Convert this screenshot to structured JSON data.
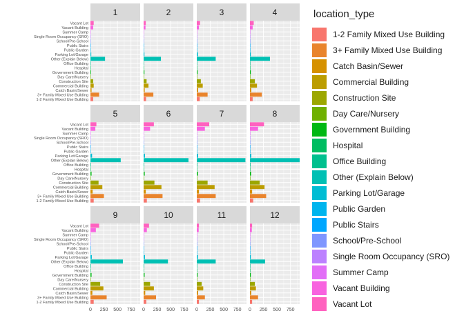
{
  "legend": {
    "title": "location_type",
    "items": [
      {
        "label": "1-2 Family Mixed Use Building",
        "color": "#F8766D"
      },
      {
        "label": "3+ Family Mixed Use Building",
        "color": "#E9842C"
      },
      {
        "label": "Catch Basin/Sewer",
        "color": "#D69100"
      },
      {
        "label": "Commercial Building",
        "color": "#BC9D00"
      },
      {
        "label": "Construction Site",
        "color": "#9CA700"
      },
      {
        "label": "Day Care/Nursery",
        "color": "#6FB000"
      },
      {
        "label": "Government Building",
        "color": "#00B813"
      },
      {
        "label": "Hospital",
        "color": "#00BD61"
      },
      {
        "label": "Office Building",
        "color": "#00C08E"
      },
      {
        "label": "Other (Explain Below)",
        "color": "#00C0B4"
      },
      {
        "label": "Parking Lot/Garage",
        "color": "#00BDD4"
      },
      {
        "label": "Public Garden",
        "color": "#00B5EE"
      },
      {
        "label": "Public Stairs",
        "color": "#00A7FF"
      },
      {
        "label": "School/Pre-School",
        "color": "#7F96FF"
      },
      {
        "label": "Single Room Occupancy (SRO)",
        "color": "#BC81FF"
      },
      {
        "label": "Summer Camp",
        "color": "#E26EF7"
      },
      {
        "label": "Vacant Building",
        "color": "#F863DF"
      },
      {
        "label": "Vacant Lot",
        "color": "#FF62BF"
      }
    ]
  },
  "chart_data": {
    "type": "bar",
    "orientation": "horizontal",
    "facet_variable": "month",
    "categories": [
      "1-2 Family Mixed Use Building",
      "3+ Family Mixed Use Building",
      "Catch Basin/Sewer",
      "Commercial Building",
      "Construction Site",
      "Day Care/Nursery",
      "Government Building",
      "Hospital",
      "Office Building",
      "Other (Explain Below)",
      "Parking Lot/Garage",
      "Public Garden",
      "Public Stairs",
      "School/Pre-School",
      "Single Room Occupancy (SRO)",
      "Summer Camp",
      "Vacant Building",
      "Vacant Lot"
    ],
    "xlim": [
      0,
      920
    ],
    "x_ticks": [
      0,
      250,
      500,
      750
    ],
    "x_tick_labels": [
      "0",
      "250",
      "500",
      "750"
    ],
    "grid": true,
    "legend_position": "right",
    "facets": [
      {
        "label": "1",
        "values": [
          50,
          160,
          20,
          60,
          50,
          5,
          12,
          2,
          8,
          270,
          15,
          5,
          2,
          3,
          3,
          1,
          50,
          60
        ]
      },
      {
        "label": "2",
        "values": [
          45,
          180,
          20,
          90,
          55,
          5,
          15,
          2,
          8,
          320,
          15,
          5,
          2,
          3,
          3,
          1,
          35,
          40
        ]
      },
      {
        "label": "3",
        "values": [
          55,
          200,
          25,
          110,
          75,
          5,
          15,
          2,
          8,
          350,
          20,
          5,
          2,
          3,
          3,
          1,
          40,
          60
        ]
      },
      {
        "label": "4",
        "values": [
          50,
          220,
          25,
          130,
          90,
          5,
          15,
          2,
          8,
          370,
          15,
          5,
          2,
          3,
          3,
          1,
          50,
          70
        ]
      },
      {
        "label": "5",
        "values": [
          60,
          250,
          40,
          220,
          150,
          8,
          20,
          3,
          10,
          560,
          30,
          8,
          3,
          3,
          3,
          2,
          90,
          110
        ]
      },
      {
        "label": "6",
        "values": [
          60,
          350,
          40,
          330,
          200,
          8,
          20,
          3,
          10,
          830,
          25,
          8,
          3,
          3,
          3,
          2,
          120,
          190
        ]
      },
      {
        "label": "7",
        "values": [
          60,
          350,
          40,
          330,
          200,
          8,
          20,
          3,
          10,
          900,
          25,
          8,
          3,
          3,
          3,
          2,
          150,
          230
        ]
      },
      {
        "label": "8",
        "values": [
          60,
          300,
          40,
          270,
          180,
          8,
          20,
          3,
          10,
          920,
          25,
          8,
          3,
          3,
          3,
          2,
          150,
          260
        ]
      },
      {
        "label": "9",
        "values": [
          60,
          300,
          35,
          240,
          180,
          8,
          20,
          3,
          10,
          600,
          25,
          8,
          3,
          3,
          3,
          2,
          100,
          160
        ]
      },
      {
        "label": "10",
        "values": [
          50,
          230,
          30,
          190,
          120,
          6,
          18,
          3,
          10,
          450,
          25,
          8,
          3,
          3,
          3,
          2,
          60,
          100
        ]
      },
      {
        "label": "11",
        "values": [
          40,
          150,
          25,
          120,
          90,
          5,
          15,
          2,
          8,
          350,
          20,
          5,
          2,
          3,
          3,
          1,
          35,
          40
        ]
      },
      {
        "label": "12",
        "values": [
          40,
          150,
          25,
          110,
          90,
          5,
          15,
          2,
          8,
          280,
          15,
          5,
          2,
          3,
          3,
          1,
          35,
          40
        ]
      }
    ]
  }
}
